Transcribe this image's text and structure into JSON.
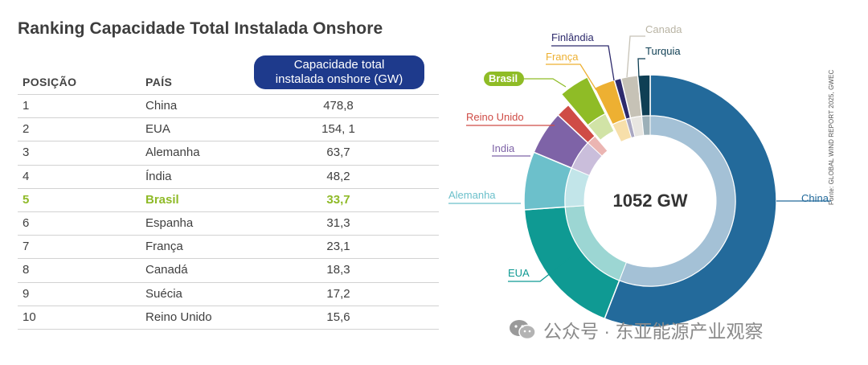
{
  "title": "Ranking Capacidade Total Instalada Onshore",
  "table": {
    "headers": {
      "posicao": "POSIÇÃO",
      "pais": "PAÍS",
      "capacidade": [
        "Capacidade total",
        "instalada onshore (GW)"
      ]
    },
    "rows": [
      {
        "pos": "1",
        "pais": "China",
        "valor": "478,8"
      },
      {
        "pos": "2",
        "pais": "EUA",
        "valor": "154, 1"
      },
      {
        "pos": "3",
        "pais": "Alemanha",
        "valor": "63,7"
      },
      {
        "pos": "4",
        "pais": "Índia",
        "valor": "48,2"
      },
      {
        "pos": "5",
        "pais": "Brasil",
        "valor": "33,7"
      },
      {
        "pos": "6",
        "pais": "Espanha",
        "valor": "31,3"
      },
      {
        "pos": "7",
        "pais": "França",
        "valor": "23,1"
      },
      {
        "pos": "8",
        "pais": "Canadá",
        "valor": "18,3"
      },
      {
        "pos": "9",
        "pais": "Suécia",
        "valor": "17,2"
      },
      {
        "pos": "10",
        "pais": "Reino Unido",
        "valor": "15,6"
      }
    ],
    "highlight_color": "#8fba28"
  },
  "chart_data": {
    "type": "pie",
    "center_label": "1052 GW",
    "total": 1052,
    "slices": [
      {
        "label": "China",
        "value": 478.8,
        "color": "#236a9b"
      },
      {
        "label": "EUA",
        "value": 154.1,
        "color": "#0f9a93"
      },
      {
        "label": "Alemanha",
        "value": 63.7,
        "color": "#6cc0cb"
      },
      {
        "label": "India",
        "value": 48.2,
        "color": "#7e63a7"
      },
      {
        "label": "Reino Unido",
        "value": 15.6,
        "color": "#cf4c46"
      },
      {
        "label": "Brasil",
        "value": 33.7,
        "color": "#8fbc26"
      },
      {
        "label": "França",
        "value": 23.1,
        "color": "#edb032"
      },
      {
        "label": "Finlândia",
        "value": 7.6,
        "color": "#2d2a6c"
      },
      {
        "label": "Canada",
        "value": 18.3,
        "color": "#c6c2b6"
      },
      {
        "label": "Turquia",
        "value": 13.5,
        "color": "#0f3f54"
      }
    ],
    "highlighted": "Brasil",
    "source": "Fonte: GLOBAL WIND REPORT 2025, GWEC"
  },
  "watermark": "公众号 · 东亚能源产业观察"
}
